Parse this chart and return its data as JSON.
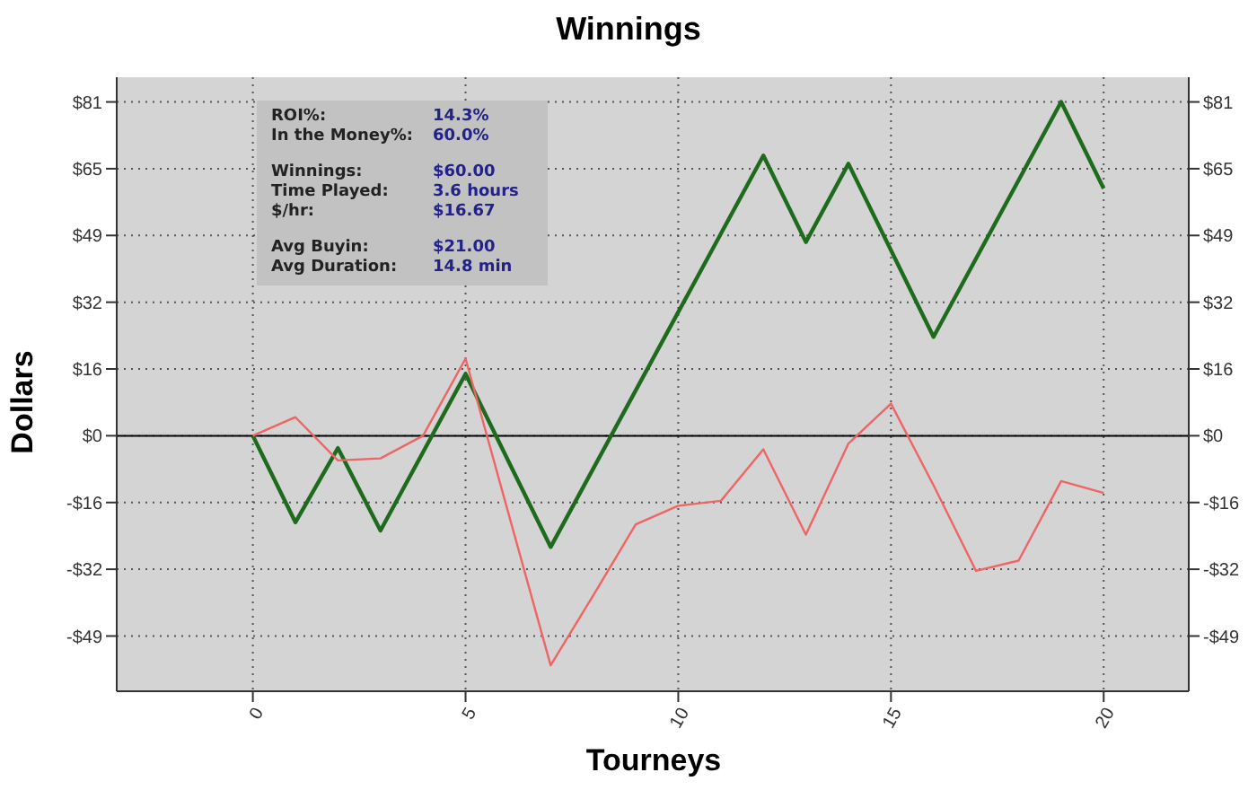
{
  "chart_data": {
    "type": "line",
    "title": "Winnings",
    "xlabel": "Tourneys",
    "ylabel": "Dollars",
    "annotations": [
      "ROI%:",
      "14.3%",
      "In the Money%:",
      "60.0%",
      "Winnings:",
      "$60.00",
      "Time Played:",
      "3.6 hours",
      "$/hr:",
      "$16.67",
      "Avg Buyin:",
      "$21.00",
      "Avg Duration:",
      "14.8 min"
    ],
    "x": [
      0,
      1,
      2,
      3,
      4,
      5,
      6,
      7,
      8,
      9,
      10,
      11,
      12,
      13,
      14,
      15,
      16,
      17,
      18,
      19,
      20
    ],
    "series": [
      {
        "color": "#1e6b1e",
        "values": [
          0,
          -21,
          -3,
          -23,
          -4,
          15,
          -6,
          -27,
          -8,
          11,
          30,
          49,
          68,
          47,
          66,
          45,
          24,
          43,
          62,
          81,
          60
        ]
      },
      {
        "color": "#f06464",
        "values": [
          0,
          4.5,
          -6,
          -5.5,
          0,
          18.7,
          -18.5,
          -55.7,
          -38.8,
          -21.5,
          -17,
          -15.8,
          -3.3,
          -24,
          -1.9,
          7.8,
          -12,
          -32.8,
          -30.3,
          -11,
          -13.9
        ]
      }
    ],
    "xlim": [
      -3.2,
      22
    ],
    "xticks": [
      0,
      5,
      10,
      15,
      20
    ],
    "ylim": [
      -62,
      87
    ],
    "yticks": [
      {
        "value": 81,
        "label": "$81"
      },
      {
        "value": 64.8,
        "label": "$65"
      },
      {
        "value": 48.6,
        "label": "$49"
      },
      {
        "value": 32.4,
        "label": "$32"
      },
      {
        "value": 16.2,
        "label": "$16"
      },
      {
        "value": 0,
        "label": "$0"
      },
      {
        "value": -16.2,
        "label": "-$16"
      },
      {
        "value": -32.4,
        "label": "-$32"
      },
      {
        "value": -48.6,
        "label": "-$49"
      }
    ],
    "y2lim": [
      -62,
      87
    ],
    "y2ticks": [
      {
        "value": 81,
        "label": "$81"
      },
      {
        "value": 64.8,
        "label": "$65"
      },
      {
        "value": 48.6,
        "label": "$49"
      },
      {
        "value": 32.4,
        "label": "$32"
      },
      {
        "value": 16.2,
        "label": "$16"
      },
      {
        "value": 0,
        "label": "$0"
      },
      {
        "value": -16.2,
        "label": "-$16"
      },
      {
        "value": -32.4,
        "label": "-$32"
      },
      {
        "value": -48.6,
        "label": "-$49"
      }
    ],
    "ref_lines": [
      {
        "axis": "y",
        "value": 0,
        "color": "#000000"
      }
    ],
    "grid": true,
    "marker": "none",
    "line_style": "solid"
  }
}
